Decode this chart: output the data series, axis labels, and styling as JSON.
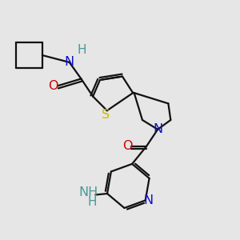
{
  "background_color": "#e6e6e6",
  "figsize": [
    3.0,
    3.0
  ],
  "dpi": 100,
  "atom_colors": {
    "N": "#1010cc",
    "H": "#4a9898",
    "O": "#cc0000",
    "S": "#ccbb00",
    "C": "#000000"
  },
  "bond_lw": 1.6,
  "bond_color": "#111111",
  "label_fontsize": 11.5
}
